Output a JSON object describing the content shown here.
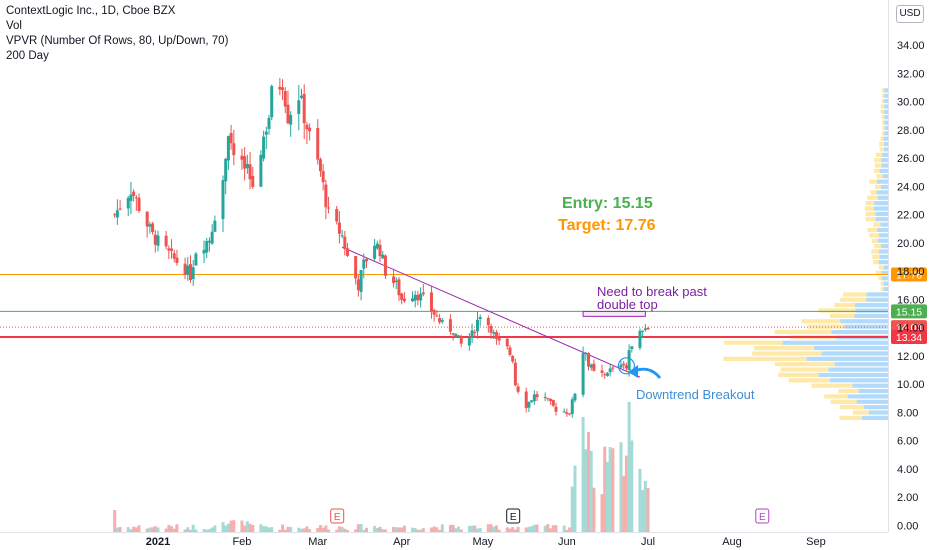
{
  "legend": {
    "symbol": "ContextLogic Inc., 1D, Cboe BZX",
    "vol": "Vol",
    "vpvr": "VPVR (Number Of Rows, 80, Up/Down, 70)",
    "ma": "200 Day"
  },
  "currency": "USD",
  "annotations": {
    "entry": "Entry: 15.15",
    "target": "Target: 17.76",
    "need": "Need to break past\ndouble top",
    "breakout": "Downtrend Breakout"
  },
  "colors": {
    "up": "#26a69a",
    "down": "#ef5350",
    "entry": "#4caf50",
    "target": "#ff9800",
    "support": "#f23645",
    "trend": "#9c27b0",
    "breakout": "#2196f3",
    "vpUp": "#2196f3",
    "vpDown": "#ffc107"
  },
  "chart_data": {
    "type": "candlestick",
    "price_axis": {
      "ticks": [
        0,
        2,
        4,
        6,
        8,
        10,
        12,
        14,
        16,
        18,
        20,
        22,
        24,
        26,
        28,
        30,
        32,
        34
      ],
      "range": [
        0,
        35
      ]
    },
    "time_axis": {
      "labels": [
        "2021",
        "Feb",
        "Mar",
        "Apr",
        "May",
        "Jun",
        "Jul",
        "Aug",
        "Sep"
      ]
    },
    "levels": [
      {
        "label": "17.76",
        "value": 17.76
      },
      {
        "label": "15.15",
        "value": 15.15
      },
      {
        "label": "14.04",
        "value": 14.04
      },
      {
        "label": "13.34",
        "value": 13.34
      }
    ],
    "events": [
      {
        "label": "E",
        "date": "2021-03-08"
      },
      {
        "label": "E",
        "date": "2021-05-12"
      },
      {
        "label": "E",
        "date": "2021-08-12"
      }
    ],
    "trendline": {
      "from": {
        "date": "2021-03-10",
        "value": 19.7
      },
      "to": {
        "date": "2021-06-28",
        "value": 10.5
      }
    },
    "breakout_point": {
      "date": "2021-06-23",
      "value": 11.3
    },
    "double_top": {
      "from": "2021-06-07",
      "to": "2021-06-30",
      "low": 14.8,
      "high": 15.15
    },
    "closes": [
      {
        "date": "2020-12-16",
        "value": 22.0
      },
      {
        "date": "2020-12-22",
        "value": 23.8
      },
      {
        "date": "2020-12-30",
        "value": 20.5
      },
      {
        "date": "2021-01-06",
        "value": 19.0
      },
      {
        "date": "2021-01-11",
        "value": 18.2
      },
      {
        "date": "2021-01-13",
        "value": 17.7
      },
      {
        "date": "2021-01-15",
        "value": 19.5
      },
      {
        "date": "2021-01-20",
        "value": 20.3
      },
      {
        "date": "2021-01-22",
        "value": 22.0
      },
      {
        "date": "2021-01-25",
        "value": 24.5
      },
      {
        "date": "2021-01-27",
        "value": 28.0
      },
      {
        "date": "2021-01-29",
        "value": 26.0
      },
      {
        "date": "2021-02-03",
        "value": 25.0
      },
      {
        "date": "2021-02-05",
        "value": 24.0
      },
      {
        "date": "2021-02-09",
        "value": 27.5
      },
      {
        "date": "2021-02-11",
        "value": 29.0
      },
      {
        "date": "2021-02-12",
        "value": 30.5
      },
      {
        "date": "2021-02-16",
        "value": 31.5
      },
      {
        "date": "2021-02-18",
        "value": 29.0
      },
      {
        "date": "2021-02-22",
        "value": 30.5
      },
      {
        "date": "2021-02-24",
        "value": 29.0
      },
      {
        "date": "2021-02-26",
        "value": 27.5
      },
      {
        "date": "2021-03-02",
        "value": 25.0
      },
      {
        "date": "2021-03-05",
        "value": 22.0
      },
      {
        "date": "2021-03-10",
        "value": 20.5
      },
      {
        "date": "2021-03-12",
        "value": 19.0
      },
      {
        "date": "2021-03-16",
        "value": 17.0
      },
      {
        "date": "2021-03-18",
        "value": 18.5
      },
      {
        "date": "2021-03-22",
        "value": 20.0
      },
      {
        "date": "2021-03-24",
        "value": 19.5
      },
      {
        "date": "2021-03-26",
        "value": 18.0
      },
      {
        "date": "2021-03-30",
        "value": 17.0
      },
      {
        "date": "2021-04-01",
        "value": 16.0
      },
      {
        "date": "2021-04-06",
        "value": 16.5
      },
      {
        "date": "2021-04-09",
        "value": 16.0
      },
      {
        "date": "2021-04-13",
        "value": 15.0
      },
      {
        "date": "2021-04-16",
        "value": 14.2
      },
      {
        "date": "2021-04-20",
        "value": 13.8
      },
      {
        "date": "2021-04-23",
        "value": 12.8
      },
      {
        "date": "2021-04-27",
        "value": 13.5
      },
      {
        "date": "2021-04-30",
        "value": 15.0
      },
      {
        "date": "2021-05-04",
        "value": 14.0
      },
      {
        "date": "2021-05-06",
        "value": 13.0
      },
      {
        "date": "2021-05-10",
        "value": 12.5
      },
      {
        "date": "2021-05-12",
        "value": 11.8
      },
      {
        "date": "2021-05-13",
        "value": 10.0
      },
      {
        "date": "2021-05-17",
        "value": 8.5
      },
      {
        "date": "2021-05-20",
        "value": 9.2
      },
      {
        "date": "2021-05-24",
        "value": 9.0
      },
      {
        "date": "2021-05-26",
        "value": 8.6
      },
      {
        "date": "2021-05-28",
        "value": 8.2
      },
      {
        "date": "2021-06-02",
        "value": 8.0
      },
      {
        "date": "2021-06-04",
        "value": 9.5
      },
      {
        "date": "2021-06-07",
        "value": 12.5
      },
      {
        "date": "2021-06-09",
        "value": 11.5
      },
      {
        "date": "2021-06-11",
        "value": 10.8
      },
      {
        "date": "2021-06-15",
        "value": 10.5
      },
      {
        "date": "2021-06-17",
        "value": 11.0
      },
      {
        "date": "2021-06-21",
        "value": 11.5
      },
      {
        "date": "2021-06-23",
        "value": 11.3
      },
      {
        "date": "2021-06-25",
        "value": 13.0
      },
      {
        "date": "2021-06-29",
        "value": 13.8
      },
      {
        "date": "2021-07-01",
        "value": 14.04
      }
    ]
  }
}
